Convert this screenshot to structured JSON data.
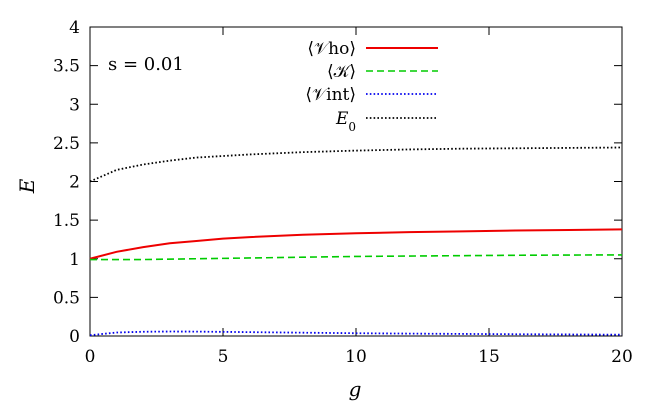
{
  "chart_data": {
    "type": "line",
    "xlabel": "g",
    "ylabel": "E",
    "xlim": [
      0,
      20
    ],
    "ylim": [
      0,
      4
    ],
    "xticks": [
      0,
      5,
      10,
      15,
      20
    ],
    "yticks": [
      0,
      0.5,
      1,
      1.5,
      2,
      2.5,
      3,
      3.5,
      4
    ],
    "ytick_labels": [
      "0",
      "0.5",
      "1",
      "1.5",
      "2",
      "2.5",
      "3",
      "3.5",
      "4"
    ],
    "xtick_labels": [
      "0",
      "5",
      "10",
      "15",
      "20"
    ],
    "annotation": "s = 0.01",
    "legend_position": "top-center",
    "grid": false,
    "series": [
      {
        "name": "⟨𝒱ho⟩",
        "color": "#ee0000",
        "style": "solid",
        "x": [
          0,
          1,
          2,
          3,
          4,
          5,
          6,
          8,
          10,
          12,
          14,
          16,
          18,
          20
        ],
        "y": [
          1.0,
          1.09,
          1.15,
          1.2,
          1.23,
          1.26,
          1.28,
          1.31,
          1.33,
          1.345,
          1.355,
          1.365,
          1.372,
          1.38
        ]
      },
      {
        "name": "⟨𝒦⟩",
        "color": "#00cc00",
        "style": "dashed",
        "x": [
          0,
          2,
          4,
          6,
          8,
          10,
          12,
          14,
          16,
          18,
          20
        ],
        "y": [
          0.99,
          0.99,
          1.0,
          1.01,
          1.02,
          1.03,
          1.035,
          1.04,
          1.045,
          1.048,
          1.05
        ]
      },
      {
        "name": "⟨𝒱int⟩",
        "color": "#0000ee",
        "style": "dotted",
        "x": [
          0,
          1,
          2,
          3,
          4,
          6,
          8,
          10,
          12,
          14,
          16,
          18,
          20
        ],
        "y": [
          0.01,
          0.045,
          0.055,
          0.058,
          0.057,
          0.05,
          0.043,
          0.036,
          0.031,
          0.027,
          0.023,
          0.02,
          0.017
        ]
      },
      {
        "name": "E0",
        "color": "#000000",
        "style": "dotted",
        "x": [
          0,
          1,
          2,
          3,
          4,
          6,
          8,
          10,
          12,
          14,
          16,
          18,
          20
        ],
        "y": [
          2.0,
          2.15,
          2.22,
          2.27,
          2.31,
          2.35,
          2.38,
          2.4,
          2.415,
          2.425,
          2.43,
          2.435,
          2.44
        ]
      }
    ]
  }
}
